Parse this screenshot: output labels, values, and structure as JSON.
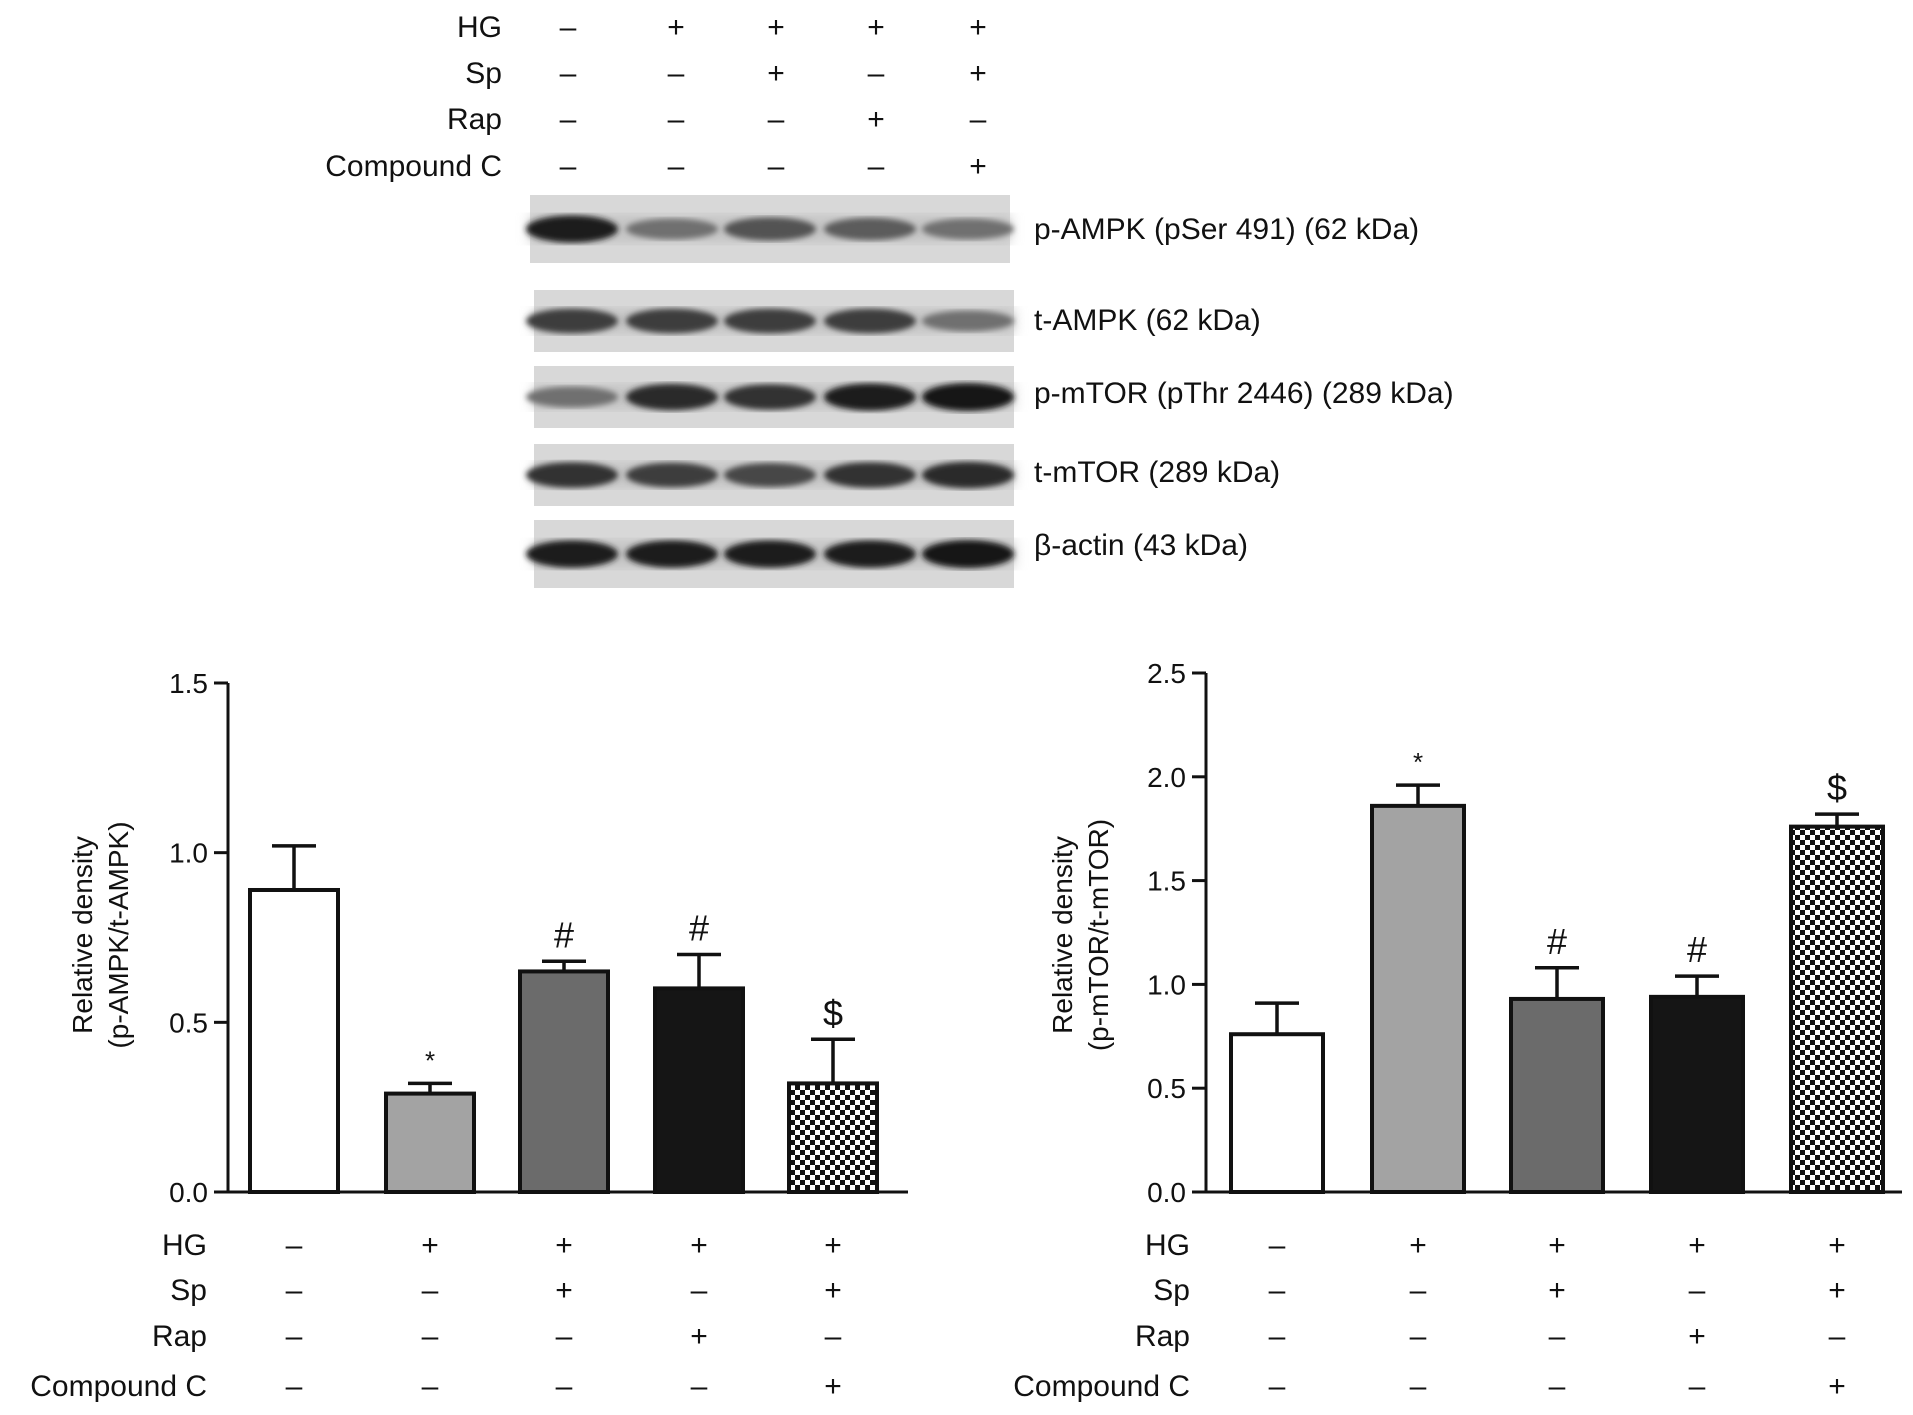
{
  "treatments": {
    "rows": [
      "HG",
      "Sp",
      "Rap",
      "Compound C"
    ],
    "signs": [
      [
        "–",
        "+",
        "+",
        "+",
        "+"
      ],
      [
        "–",
        "–",
        "+",
        "–",
        "+"
      ],
      [
        "–",
        "–",
        "–",
        "+",
        "–"
      ],
      [
        "–",
        "–",
        "–",
        "–",
        "+"
      ]
    ]
  },
  "blot": {
    "bands": [
      "p-AMPK (pSer 491) (62 kDa)",
      "t-AMPK (62 kDa)",
      "p-mTOR (pThr 2446) (289 kDa)",
      "t-mTOR (289 kDa)",
      "β-actin (43 kDa)"
    ],
    "intensity": [
      [
        0.95,
        0.55,
        0.7,
        0.65,
        0.55
      ],
      [
        0.8,
        0.8,
        0.8,
        0.8,
        0.55
      ],
      [
        0.55,
        0.9,
        0.85,
        0.95,
        1.0
      ],
      [
        0.85,
        0.8,
        0.75,
        0.85,
        0.9
      ],
      [
        0.95,
        0.95,
        0.95,
        0.95,
        1.0
      ]
    ]
  },
  "colors": {
    "ink": "#111111",
    "light_gray": "#a3a3a3",
    "dark_gray": "#6b6b6b",
    "black": "#151515",
    "white": "#ffffff"
  },
  "chart_data": [
    {
      "type": "bar",
      "ylabel_lines": [
        "Relative density",
        "(p-AMPK/t-AMPK)"
      ],
      "ylim": [
        0,
        1.5
      ],
      "yticks": [
        "0.0",
        "0.5",
        "1.0",
        "1.5"
      ],
      "values": [
        0.89,
        0.29,
        0.65,
        0.6,
        0.32
      ],
      "errors": [
        0.13,
        0.03,
        0.03,
        0.1,
        0.13
      ],
      "annotations": [
        "",
        "*",
        "#",
        "#",
        "$"
      ],
      "fills": [
        "white",
        "light_gray",
        "dark_gray",
        "black",
        "checker"
      ],
      "grid": false
    },
    {
      "type": "bar",
      "ylabel_lines": [
        "Relative density",
        "(p-mTOR/t-mTOR)"
      ],
      "ylim": [
        0,
        2.5
      ],
      "yticks": [
        "0.0",
        "0.5",
        "1.0",
        "1.5",
        "2.0",
        "2.5"
      ],
      "values": [
        0.76,
        1.86,
        0.93,
        0.94,
        1.76
      ],
      "errors": [
        0.15,
        0.1,
        0.15,
        0.1,
        0.06
      ],
      "annotations": [
        "",
        "*",
        "#",
        "#",
        "$"
      ],
      "fills": [
        "white",
        "light_gray",
        "dark_gray",
        "black",
        "checker"
      ],
      "grid": false
    }
  ]
}
